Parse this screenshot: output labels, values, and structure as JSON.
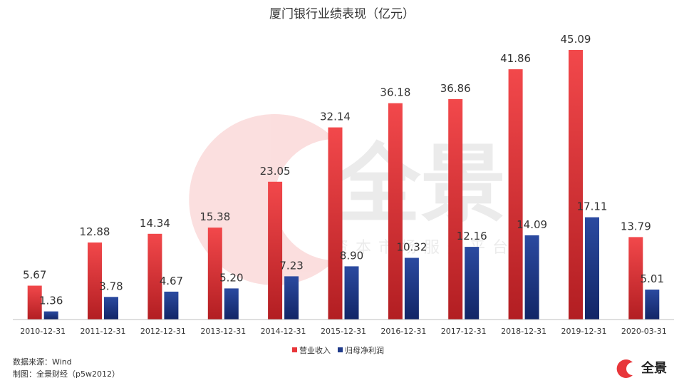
{
  "chart_data": {
    "type": "bar",
    "title": "厦门银行业绩表现（亿元）",
    "categories": [
      "2010-12-31",
      "2011-12-31",
      "2012-12-31",
      "2013-12-31",
      "2014-12-31",
      "2015-12-31",
      "2016-12-31",
      "2017-12-31",
      "2018-12-31",
      "2019-12-31",
      "2020-03-31"
    ],
    "series": [
      {
        "name": "营业收入",
        "values": [
          5.67,
          12.88,
          14.34,
          15.38,
          23.05,
          32.14,
          36.18,
          36.86,
          41.86,
          45.09,
          13.79
        ],
        "labels": [
          "5.67",
          "12.88",
          "14.34",
          "15.38",
          "23.05",
          "32.14",
          "36.18",
          "36.86",
          "41.86",
          "45.09",
          "13.79"
        ],
        "color": "#e8363a"
      },
      {
        "name": "归母净利润",
        "values": [
          1.36,
          3.78,
          4.67,
          5.2,
          7.23,
          8.9,
          10.32,
          12.16,
          14.09,
          17.11,
          5.01
        ],
        "labels": [
          "1.36",
          "3.78",
          "4.67",
          "5.20",
          "7.23",
          "8.90",
          "10.32",
          "12.16",
          "14.09",
          "17.11",
          "5.01"
        ],
        "color": "#1f3a8a"
      }
    ],
    "ylim": [
      0,
      48
    ],
    "grid": false,
    "legend_position": "bottom-center"
  },
  "footer": {
    "source": "数据来源：Wind",
    "credit": "制图：全景财经（p5w2012）"
  },
  "watermark": {
    "brand": "全景",
    "tagline": "资本市场服务平台"
  },
  "logo": {
    "text": "全景",
    "accent": "#e8363a"
  }
}
